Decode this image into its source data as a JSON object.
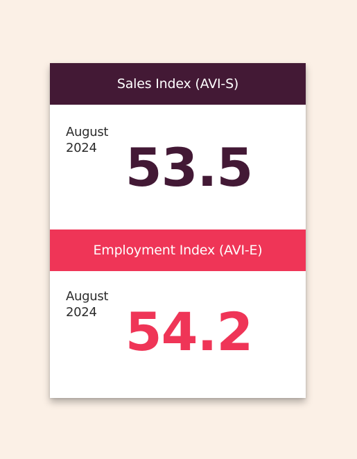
{
  "colors": {
    "background": "#fbf0e6",
    "sales_accent": "#431935",
    "employment_accent": "#ef3557"
  },
  "sales": {
    "title": "Sales Index (AVI-S)",
    "month": "August",
    "year": "2024",
    "value": "53.5"
  },
  "employment": {
    "title": "Employment Index (AVI-E)",
    "month": "August",
    "year": "2024",
    "value": "54.2"
  }
}
